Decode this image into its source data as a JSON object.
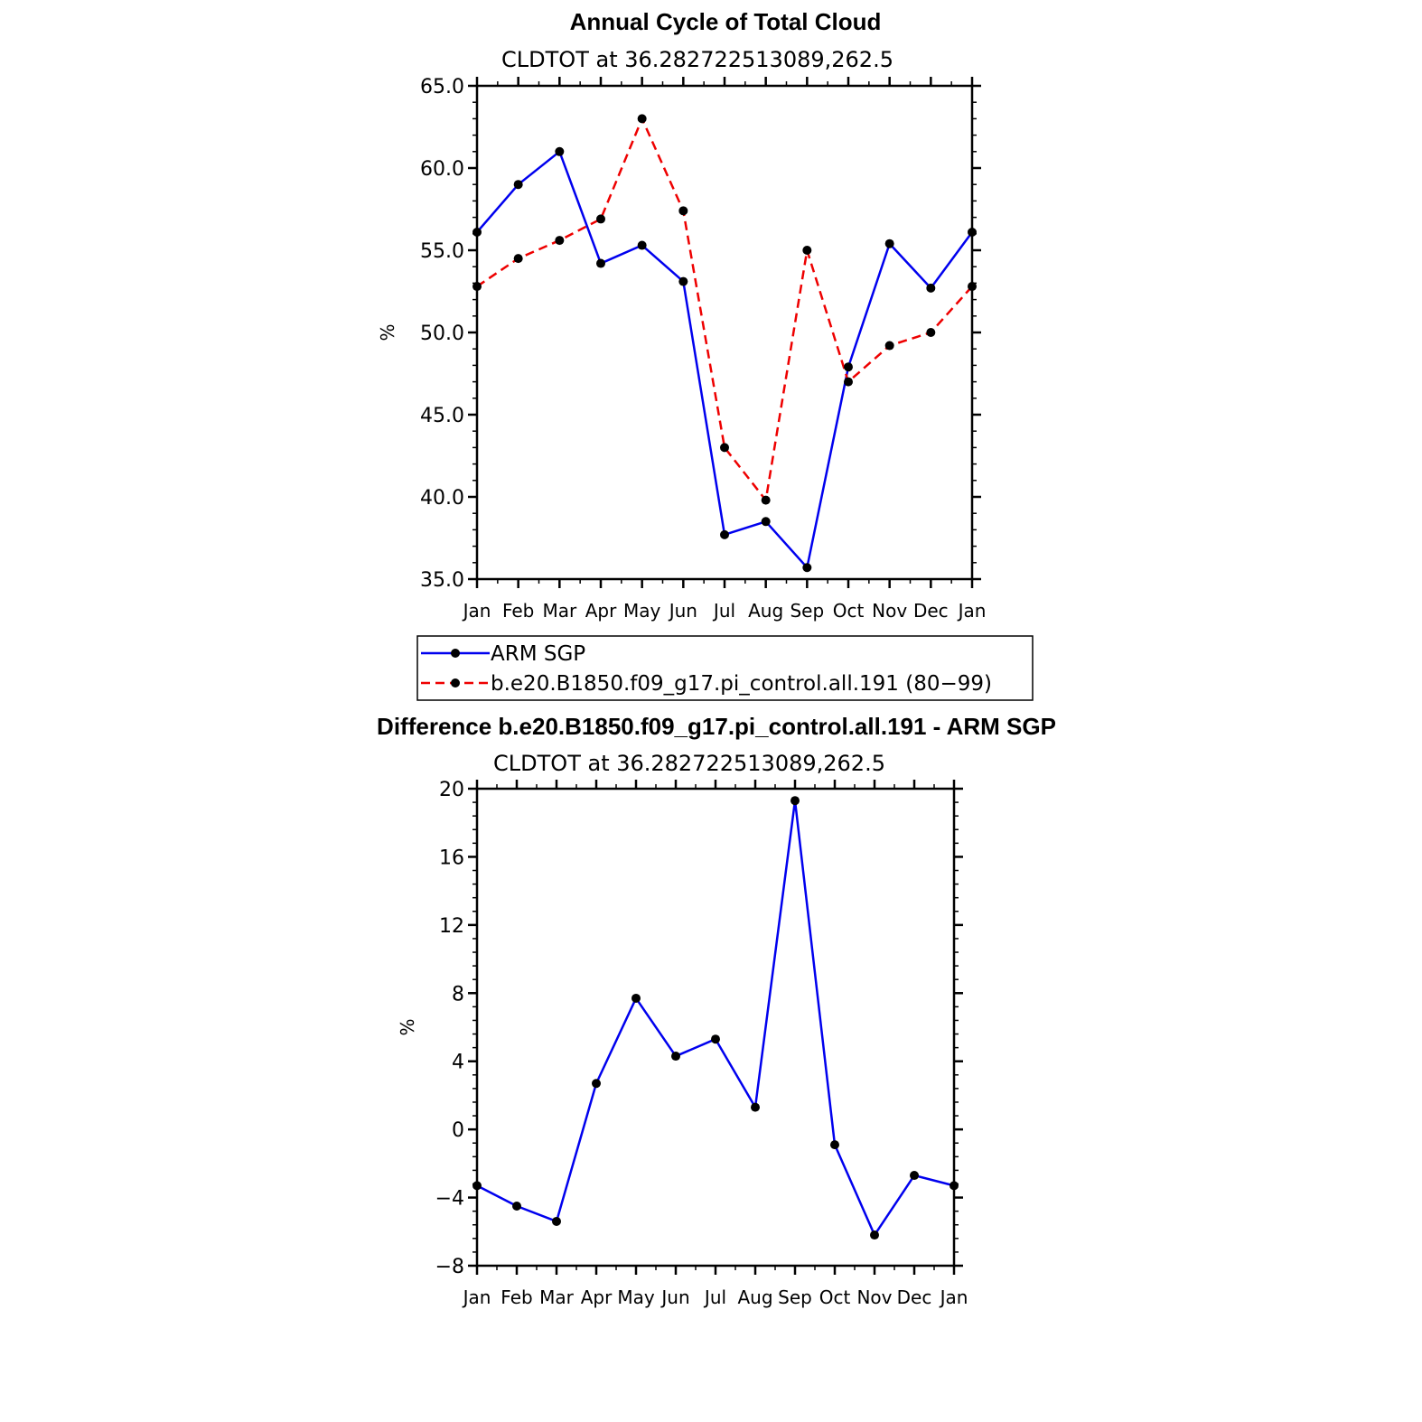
{
  "chart_data": [
    {
      "type": "line",
      "title": "Annual Cycle of Total Cloud",
      "subtitle": "CLDTOT at 36.282722513089,262.5",
      "xlabel": "",
      "ylabel": "%",
      "categories": [
        "Jan",
        "Feb",
        "Mar",
        "Apr",
        "May",
        "Jun",
        "Jul",
        "Aug",
        "Sep",
        "Oct",
        "Nov",
        "Dec",
        "Jan"
      ],
      "ylim": [
        35.0,
        65.0
      ],
      "yticks": [
        "35.0",
        "40.0",
        "45.0",
        "50.0",
        "55.0",
        "60.0",
        "65.0"
      ],
      "series": [
        {
          "name": "ARM SGP",
          "color": "#0000ee",
          "dash": "solid",
          "values": [
            56.1,
            59.0,
            61.0,
            54.2,
            55.3,
            53.1,
            37.7,
            38.5,
            35.7,
            47.9,
            55.4,
            52.7,
            56.1
          ]
        },
        {
          "name": "b.e20.B1850.f09_g17.pi_control.all.191 (80−99)",
          "color": "#ee0000",
          "dash": "dashed",
          "values": [
            52.8,
            54.5,
            55.6,
            56.9,
            63.0,
            57.4,
            43.0,
            39.8,
            55.0,
            47.0,
            49.2,
            50.0,
            52.8
          ]
        }
      ],
      "legend": "bottom"
    },
    {
      "type": "line",
      "title": "Difference b.e20.B1850.f09_g17.pi_control.all.191 - ARM SGP",
      "subtitle": "CLDTOT at 36.282722513089,262.5",
      "xlabel": "",
      "ylabel": "%",
      "categories": [
        "Jan",
        "Feb",
        "Mar",
        "Apr",
        "May",
        "Jun",
        "Jul",
        "Aug",
        "Sep",
        "Oct",
        "Nov",
        "Dec",
        "Jan"
      ],
      "ylim": [
        -8,
        20
      ],
      "yticks": [
        "−8",
        "−4",
        "0",
        "4",
        "8",
        "12",
        "16",
        "20"
      ],
      "series": [
        {
          "color": "#0000ee",
          "dash": "solid",
          "values": [
            -3.3,
            -4.5,
            -5.4,
            2.7,
            7.7,
            4.3,
            5.3,
            1.3,
            19.3,
            -0.9,
            -6.2,
            -2.7,
            -3.3
          ]
        }
      ]
    }
  ]
}
